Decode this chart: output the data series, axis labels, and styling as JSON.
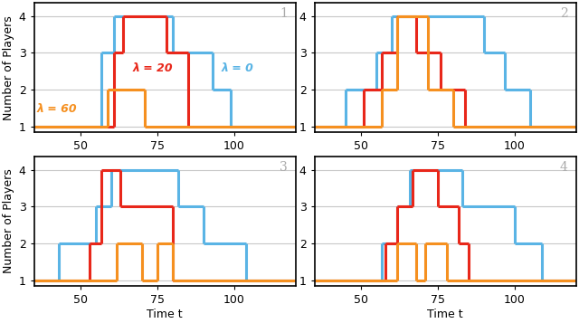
{
  "colors": {
    "blue": "#5ab4e5",
    "red": "#e8271a",
    "orange": "#f59020"
  },
  "subplot1": {
    "label": "1",
    "blue": [
      [
        35,
        1
      ],
      [
        57,
        1
      ],
      [
        57,
        3
      ],
      [
        61,
        3
      ],
      [
        61,
        4
      ],
      [
        80,
        4
      ],
      [
        80,
        3
      ],
      [
        93,
        3
      ],
      [
        93,
        2
      ],
      [
        99,
        2
      ],
      [
        99,
        1
      ],
      [
        120,
        1
      ]
    ],
    "red": [
      [
        35,
        1
      ],
      [
        61,
        1
      ],
      [
        61,
        3
      ],
      [
        64,
        3
      ],
      [
        64,
        4
      ],
      [
        78,
        4
      ],
      [
        78,
        3
      ],
      [
        85,
        3
      ],
      [
        85,
        1
      ],
      [
        120,
        1
      ]
    ],
    "orange": [
      [
        35,
        1
      ],
      [
        59,
        1
      ],
      [
        59,
        2
      ],
      [
        71,
        2
      ],
      [
        71,
        1
      ],
      [
        120,
        1
      ]
    ]
  },
  "subplot2": {
    "label": "2",
    "blue": [
      [
        35,
        1
      ],
      [
        45,
        1
      ],
      [
        45,
        2
      ],
      [
        55,
        2
      ],
      [
        55,
        3
      ],
      [
        60,
        3
      ],
      [
        60,
        4
      ],
      [
        90,
        4
      ],
      [
        90,
        3
      ],
      [
        97,
        3
      ],
      [
        97,
        2
      ],
      [
        105,
        2
      ],
      [
        105,
        1
      ],
      [
        120,
        1
      ]
    ],
    "red": [
      [
        35,
        1
      ],
      [
        51,
        1
      ],
      [
        51,
        2
      ],
      [
        57,
        2
      ],
      [
        57,
        3
      ],
      [
        62,
        3
      ],
      [
        62,
        4
      ],
      [
        68,
        4
      ],
      [
        68,
        3
      ],
      [
        76,
        3
      ],
      [
        76,
        2
      ],
      [
        84,
        2
      ],
      [
        84,
        1
      ],
      [
        120,
        1
      ]
    ],
    "orange": [
      [
        35,
        1
      ],
      [
        57,
        1
      ],
      [
        57,
        2
      ],
      [
        62,
        2
      ],
      [
        62,
        4
      ],
      [
        72,
        4
      ],
      [
        72,
        2
      ],
      [
        80,
        2
      ],
      [
        80,
        1
      ],
      [
        120,
        1
      ]
    ]
  },
  "subplot3": {
    "label": "3",
    "blue": [
      [
        35,
        1
      ],
      [
        43,
        1
      ],
      [
        43,
        2
      ],
      [
        55,
        2
      ],
      [
        55,
        3
      ],
      [
        60,
        3
      ],
      [
        60,
        4
      ],
      [
        82,
        4
      ],
      [
        82,
        3
      ],
      [
        90,
        3
      ],
      [
        90,
        2
      ],
      [
        104,
        2
      ],
      [
        104,
        1
      ],
      [
        120,
        1
      ]
    ],
    "red": [
      [
        35,
        1
      ],
      [
        53,
        1
      ],
      [
        53,
        2
      ],
      [
        57,
        2
      ],
      [
        57,
        4
      ],
      [
        63,
        4
      ],
      [
        63,
        3
      ],
      [
        80,
        3
      ],
      [
        80,
        1
      ],
      [
        120,
        1
      ]
    ],
    "orange": [
      [
        35,
        1
      ],
      [
        62,
        1
      ],
      [
        62,
        2
      ],
      [
        70,
        2
      ],
      [
        70,
        1
      ],
      [
        75,
        1
      ],
      [
        75,
        2
      ],
      [
        80,
        2
      ],
      [
        80,
        1
      ],
      [
        120,
        1
      ]
    ]
  },
  "subplot4": {
    "label": "4",
    "blue": [
      [
        35,
        1
      ],
      [
        57,
        1
      ],
      [
        57,
        2
      ],
      [
        62,
        2
      ],
      [
        62,
        3
      ],
      [
        66,
        3
      ],
      [
        66,
        4
      ],
      [
        83,
        4
      ],
      [
        83,
        3
      ],
      [
        100,
        3
      ],
      [
        100,
        2
      ],
      [
        109,
        2
      ],
      [
        109,
        1
      ],
      [
        120,
        1
      ]
    ],
    "red": [
      [
        35,
        1
      ],
      [
        58,
        1
      ],
      [
        58,
        2
      ],
      [
        62,
        2
      ],
      [
        62,
        3
      ],
      [
        67,
        3
      ],
      [
        67,
        4
      ],
      [
        75,
        4
      ],
      [
        75,
        3
      ],
      [
        82,
        3
      ],
      [
        82,
        2
      ],
      [
        85,
        2
      ],
      [
        85,
        1
      ],
      [
        120,
        1
      ]
    ],
    "orange": [
      [
        35,
        1
      ],
      [
        62,
        1
      ],
      [
        62,
        2
      ],
      [
        68,
        2
      ],
      [
        68,
        1
      ],
      [
        71,
        1
      ],
      [
        71,
        2
      ],
      [
        78,
        2
      ],
      [
        78,
        1
      ],
      [
        120,
        1
      ]
    ]
  },
  "xlim": [
    35,
    120
  ],
  "ylim": [
    0.85,
    4.35
  ],
  "xticks": [
    50,
    75,
    100
  ],
  "yticks": [
    1,
    2,
    3,
    4
  ],
  "xlabel": "Time t",
  "ylabel": "Number of Players",
  "linewidth": 2.2,
  "grid_color": "#c8c8c8",
  "background": "#ffffff"
}
